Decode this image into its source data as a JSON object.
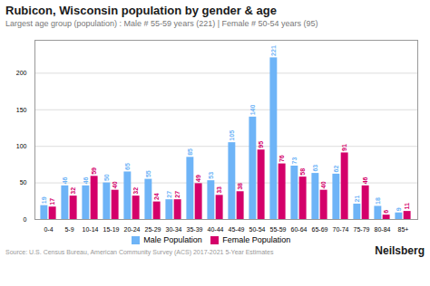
{
  "chart_data": {
    "type": "bar",
    "title": "Rubicon, Wisconsin population by gender & age",
    "subtitle": "Largest age group (population) : Male # 55-59 years (221) | Female # 50-54 years (95)",
    "annotations": [
      "Source: U.S. Census Bureau, American Community Survey (ACS) 2017-2021 5-Year Estimates",
      "Neilsberg"
    ],
    "categories": [
      "0-4",
      "5-9",
      "10-14",
      "15-19",
      "20-24",
      "25-29",
      "30-34",
      "35-39",
      "40-44",
      "45-49",
      "50-54",
      "55-59",
      "60-64",
      "65-69",
      "70-74",
      "75-79",
      "80-84",
      "85+"
    ],
    "series": [
      {
        "name": "Male Population",
        "color": "#6EB4F7",
        "values": [
          19,
          46,
          46,
          50,
          65,
          55,
          27,
          85,
          53,
          105,
          140,
          221,
          73,
          63,
          62,
          21,
          18,
          9
        ]
      },
      {
        "name": "Female Population",
        "color": "#D4006A",
        "values": [
          17,
          32,
          59,
          40,
          32,
          24,
          27,
          49,
          33,
          38,
          95,
          76,
          58,
          40,
          91,
          46,
          6,
          11
        ]
      }
    ],
    "ylim": [
      0,
      245
    ],
    "yticks": [
      0,
      50,
      100,
      150,
      200
    ],
    "grid": true,
    "legend": "bottom",
    "data_labels": true
  }
}
